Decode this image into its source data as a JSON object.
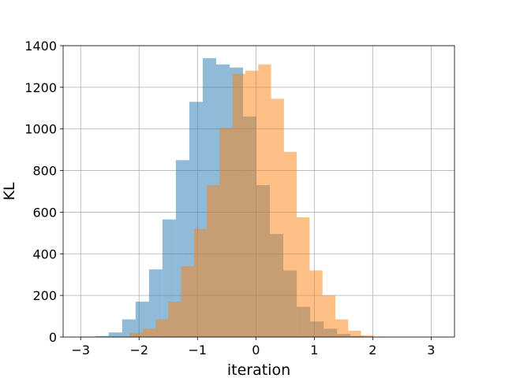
{
  "chart_data": {
    "type": "bar",
    "title": "",
    "xlabel": "iteration",
    "ylabel": "KL",
    "xlim": [
      -3.3,
      3.4
    ],
    "ylim": [
      0,
      1400
    ],
    "grid": true,
    "xticks": [
      -3,
      -2,
      -1,
      0,
      1,
      2,
      3
    ],
    "xtick_labels": [
      "−3",
      "−2",
      "−1",
      "0",
      "1",
      "2",
      "3"
    ],
    "yticks": [
      0,
      200,
      400,
      600,
      800,
      1000,
      1200,
      1400
    ],
    "ytick_labels": [
      "0",
      "200",
      "400",
      "600",
      "800",
      "1000",
      "1200",
      "1400"
    ],
    "series": [
      {
        "color": "#1f77b4",
        "opacity": 0.5,
        "bins": [
          [
            -2.98,
            -2.75,
            2
          ],
          [
            -2.75,
            -2.52,
            5
          ],
          [
            -2.52,
            -2.29,
            22
          ],
          [
            -2.29,
            -2.06,
            85
          ],
          [
            -2.06,
            -1.83,
            170
          ],
          [
            -1.83,
            -1.6,
            325
          ],
          [
            -1.6,
            -1.37,
            565
          ],
          [
            -1.37,
            -1.14,
            850
          ],
          [
            -1.14,
            -0.91,
            1130
          ],
          [
            -0.91,
            -0.68,
            1340
          ],
          [
            -0.68,
            -0.45,
            1310
          ],
          [
            -0.45,
            -0.22,
            1295
          ],
          [
            -0.22,
            0.01,
            1060
          ],
          [
            0.01,
            0.24,
            730
          ],
          [
            0.24,
            0.47,
            495
          ],
          [
            0.47,
            0.7,
            320
          ],
          [
            0.7,
            0.93,
            145
          ],
          [
            0.93,
            1.16,
            75
          ],
          [
            1.16,
            1.39,
            40
          ],
          [
            1.39,
            1.62,
            15
          ],
          [
            1.62,
            1.85,
            5
          ],
          [
            1.85,
            2.08,
            2
          ]
        ]
      },
      {
        "color": "#ff7f0e",
        "opacity": 0.5,
        "bins": [
          [
            -2.38,
            -2.16,
            3
          ],
          [
            -2.16,
            -1.94,
            20
          ],
          [
            -1.94,
            -1.72,
            40
          ],
          [
            -1.72,
            -1.5,
            85
          ],
          [
            -1.5,
            -1.28,
            170
          ],
          [
            -1.28,
            -1.06,
            340
          ],
          [
            -1.06,
            -0.84,
            520
          ],
          [
            -0.84,
            -0.62,
            730
          ],
          [
            -0.62,
            -0.4,
            1005
          ],
          [
            -0.4,
            -0.18,
            1265
          ],
          [
            -0.18,
            0.04,
            1280
          ],
          [
            0.04,
            0.26,
            1310
          ],
          [
            0.26,
            0.48,
            1145
          ],
          [
            0.48,
            0.7,
            890
          ],
          [
            0.7,
            0.92,
            575
          ],
          [
            0.92,
            1.14,
            320
          ],
          [
            1.14,
            1.36,
            200
          ],
          [
            1.36,
            1.58,
            85
          ],
          [
            1.58,
            1.8,
            30
          ],
          [
            1.8,
            2.02,
            8
          ],
          [
            2.02,
            2.24,
            2
          ]
        ]
      }
    ]
  }
}
